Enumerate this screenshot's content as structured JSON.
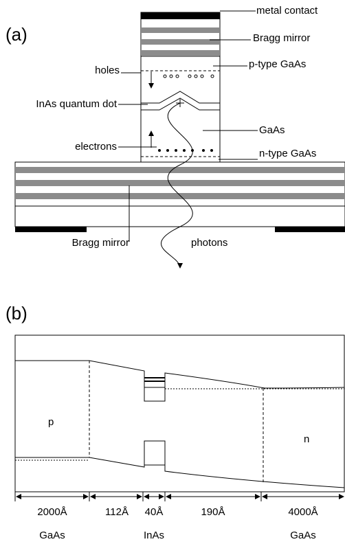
{
  "panel_a": {
    "label": "(a)",
    "annotations": {
      "metal_contact": "metal contact",
      "top_mirror": "Bragg mirror",
      "p_type": "p-type GaAs",
      "holes": "holes",
      "quantum_dot": "InAs quantum dot",
      "gaas": "GaAs",
      "electrons": "electrons",
      "n_type": "n-type GaAs",
      "bottom_mirror": "Bragg mirror",
      "photons": "photons"
    }
  },
  "panel_b": {
    "label": "(b)",
    "regions": [
      "p",
      "n"
    ],
    "thicknesses": [
      "2000Å",
      "112Å",
      "40Å",
      "190Å",
      "4000Å"
    ],
    "materials": [
      "GaAs",
      "InAs",
      "GaAs"
    ]
  }
}
